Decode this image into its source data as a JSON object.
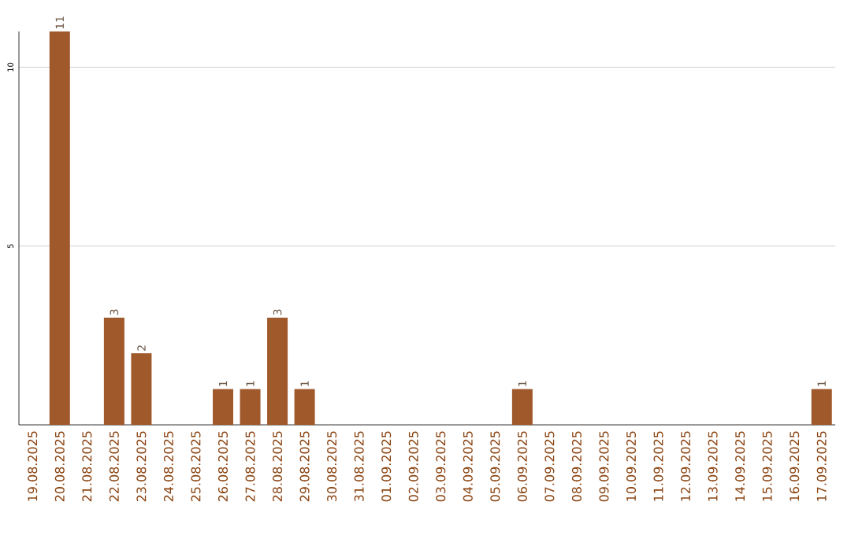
{
  "chart_data": {
    "type": "bar",
    "categories": [
      "19.08.2025",
      "20.08.2025",
      "21.08.2025",
      "22.08.2025",
      "23.08.2025",
      "24.08.2025",
      "25.08.2025",
      "26.08.2025",
      "27.08.2025",
      "28.08.2025",
      "29.08.2025",
      "30.08.2025",
      "31.08.2025",
      "01.09.2025",
      "02.09.2025",
      "03.09.2025",
      "04.09.2025",
      "05.09.2025",
      "06.09.2025",
      "07.09.2025",
      "08.09.2025",
      "09.09.2025",
      "10.09.2025",
      "11.09.2025",
      "12.09.2025",
      "13.09.2025",
      "14.09.2025",
      "15.09.2025",
      "16.09.2025",
      "17.09.2025"
    ],
    "values": [
      0,
      11,
      0,
      3,
      2,
      0,
      0,
      1,
      1,
      3,
      1,
      0,
      0,
      0,
      0,
      0,
      0,
      0,
      1,
      0,
      0,
      0,
      0,
      0,
      0,
      0,
      0,
      0,
      0,
      1
    ],
    "value_labels": [
      null,
      "11",
      null,
      "3",
      "2",
      null,
      null,
      "1",
      "1",
      "3",
      "1",
      null,
      null,
      null,
      null,
      null,
      null,
      null,
      "1",
      null,
      null,
      null,
      null,
      null,
      null,
      null,
      null,
      null,
      null,
      "1"
    ],
    "color": "#a0592b",
    "ylim": [
      0,
      11
    ],
    "yticks": [
      5,
      10
    ],
    "grid": "y"
  }
}
